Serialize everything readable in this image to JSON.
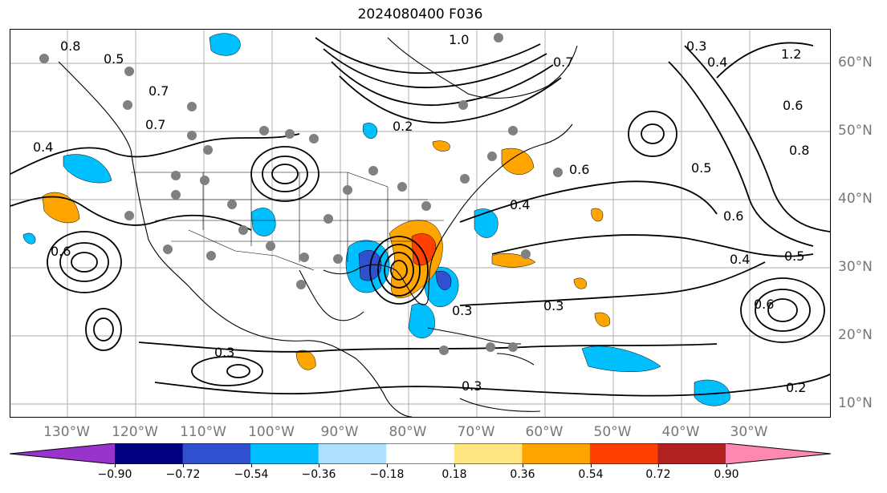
{
  "title": "2024080400 F036",
  "latitude_labels": [
    "60°N",
    "50°N",
    "40°N",
    "30°N",
    "20°N",
    "10°N"
  ],
  "longitude_labels": [
    "130°W",
    "120°W",
    "110°W",
    "100°W",
    "90°W",
    "80°W",
    "70°W",
    "60°W",
    "50°W",
    "40°W",
    "30°W"
  ],
  "contour_labels": [
    "0.8",
    "0.5",
    "0.7",
    "1.0",
    "0.7",
    "0.3",
    "0.4",
    "1.2",
    "0.6",
    "0.8",
    "0.6",
    "0.4",
    "0.2",
    "0.5",
    "0.6",
    "0.4",
    "0.3",
    "0.3",
    "0.3",
    "0.3",
    "0.6",
    "0.2",
    "0.7",
    "0.6",
    "0.4",
    "0.5"
  ],
  "colorbar": {
    "ticks": [
      "−0.90",
      "−0.72",
      "−0.54",
      "−0.36",
      "−0.18",
      "0.18",
      "0.36",
      "0.54",
      "0.72",
      "0.90"
    ],
    "colors": [
      "#9933cc",
      "#000080",
      "#3050d0",
      "#00bfff",
      "#b0e0ff",
      "#ffffff",
      "#ffe680",
      "#ffa500",
      "#ff4000",
      "#b22222",
      "#ff88b0"
    ]
  }
}
